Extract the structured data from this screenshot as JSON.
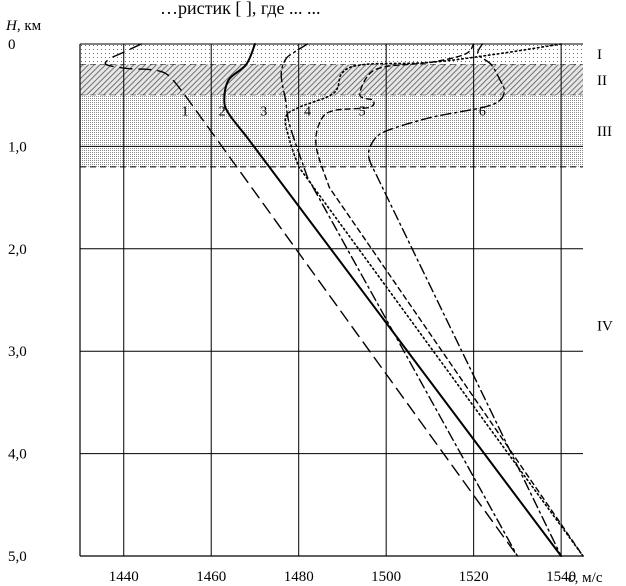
{
  "top_text": "…ристик [ ], где ... ...",
  "chart_data": {
    "type": "line",
    "title": "",
    "ylabel_symbol": "H",
    "ylabel_unit": ", км",
    "xlabel_symbol": "c",
    "xlabel_unit": ", м/с",
    "xlim": [
      1430,
      1545
    ],
    "ylim": [
      0,
      5
    ],
    "x_ticks": [
      1440,
      1460,
      1480,
      1500,
      1520,
      1540
    ],
    "x_tick_labels": [
      "1440",
      "1460",
      "1480",
      "1500",
      "1520",
      "1540"
    ],
    "y_ticks": [
      0,
      1,
      2,
      3,
      4,
      5
    ],
    "y_tick_labels": [
      "0",
      "1,0",
      "2,0",
      "3,0",
      "4,0",
      "5,0"
    ],
    "grid": true,
    "layers": [
      {
        "name": "I",
        "from": 0,
        "to": 0.2,
        "fill": "dots-sparse"
      },
      {
        "name": "II",
        "from": 0.2,
        "to": 0.5,
        "fill": "hatch"
      },
      {
        "name": "III",
        "from": 0.5,
        "to": 1.2,
        "fill": "dots-dense"
      },
      {
        "name": "IV",
        "from": 1.2,
        "to": 5.0,
        "fill": "none"
      }
    ],
    "series": [
      {
        "name": "1",
        "style": "long-dash",
        "label_at": [
          1454,
          0.65
        ],
        "x": [
          1444,
          1440,
          1437,
          1436,
          1441,
          1446,
          1450,
          1454,
          1530
        ],
        "y": [
          0,
          0.08,
          0.14,
          0.2,
          0.24,
          0.25,
          0.3,
          0.5,
          5.0
        ]
      },
      {
        "name": "2",
        "style": "solid",
        "label_at": [
          1462.5,
          0.65
        ],
        "x": [
          1470,
          1468,
          1464,
          1463,
          1464,
          1468,
          1540
        ],
        "y": [
          0,
          0.2,
          0.35,
          0.55,
          0.68,
          0.9,
          5.0
        ]
      },
      {
        "name": "3",
        "style": "dash-dot",
        "label_at": [
          1472,
          0.65
        ],
        "x": [
          1482,
          1479,
          1477,
          1476,
          1477,
          1478,
          1482,
          1530
        ],
        "y": [
          0,
          0.08,
          0.15,
          0.3,
          0.55,
          0.8,
          1.3,
          5.0
        ]
      },
      {
        "name": "4",
        "style": "dotted",
        "label_at": [
          1482,
          0.65
        ],
        "x": [
          1540,
          1525,
          1510,
          1495,
          1490,
          1488,
          1480,
          1477,
          1478,
          1480,
          1545
        ],
        "y": [
          0,
          0.1,
          0.18,
          0.2,
          0.28,
          0.48,
          0.62,
          0.72,
          0.95,
          1.2,
          5.0
        ]
      },
      {
        "name": "5",
        "style": "short-dash",
        "label_at": [
          1494.5,
          0.65
        ],
        "x": [
          1520,
          1518,
          1510,
          1500,
          1496,
          1494,
          1497,
          1496,
          1488,
          1485,
          1484,
          1487,
          1545
        ],
        "y": [
          0,
          0.1,
          0.18,
          0.22,
          0.3,
          0.5,
          0.55,
          0.62,
          0.65,
          0.75,
          1.0,
          1.4,
          5.0
        ]
      },
      {
        "name": "6",
        "style": "dash-dot",
        "label_at": [
          1522,
          0.65
        ],
        "x": [
          1522,
          1521,
          1524,
          1526,
          1527,
          1526,
          1522,
          1510,
          1500,
          1497,
          1496,
          1498,
          1540
        ],
        "y": [
          0,
          0.1,
          0.2,
          0.35,
          0.45,
          0.55,
          0.62,
          0.72,
          0.85,
          0.95,
          1.1,
          1.3,
          5.0
        ]
      }
    ]
  }
}
